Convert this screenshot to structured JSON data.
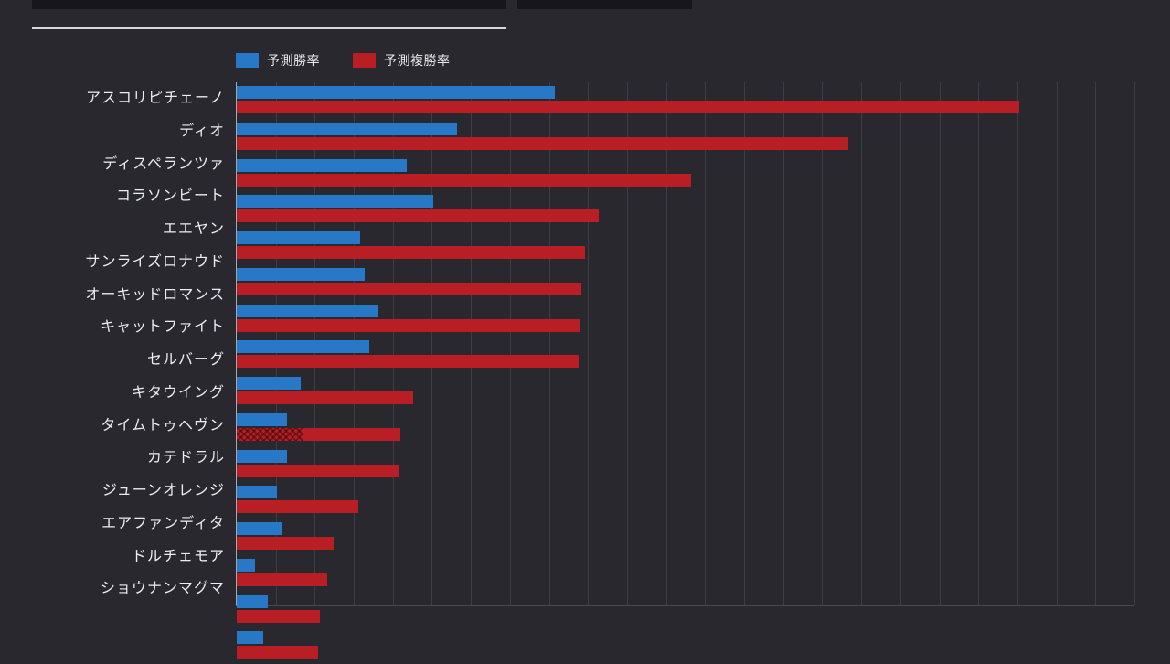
{
  "colors": {
    "background": "#28282e",
    "bar_blue": "#2878c8",
    "bar_red": "#b91e24",
    "gridline": "#3d3d45",
    "axis": "#a7a8ae",
    "text": "#ecedef",
    "top_fragment": "#17171b",
    "fragment_underline": "#d8d8dc"
  },
  "chart_data": {
    "type": "bar",
    "orientation": "horizontal",
    "unit": "%",
    "title": "",
    "grid": "on",
    "legend_position": "top-left",
    "xlim": [
      0,
      57.5
    ],
    "grid_step": 2.5,
    "categories": [
      "アスコリピチェーノ",
      "ディオ",
      "ディスペランツァ",
      "コラソンビート",
      "エエヤン",
      "サンライズロナウド",
      "オーキッドロマンス",
      "キャットファイト",
      "セルバーグ",
      "キタウイング",
      "タイムトゥヘヴン",
      "カテドラル",
      "ジューンオレンジ",
      "エアファンディタ",
      "ドルチェモア",
      "ショウナンマグマ"
    ],
    "series": [
      {
        "key": "win",
        "name": "予測勝率",
        "color": "#2878c8",
        "values": [
          20.4,
          14.1,
          10.9,
          12.6,
          7.9,
          8.2,
          9.0,
          8.5,
          4.1,
          3.2,
          3.2,
          2.6,
          2.9,
          1.2,
          2.0,
          1.7
        ]
      },
      {
        "key": "place",
        "name": "予測複勝率",
        "color": "#b91e24",
        "values": [
          50.1,
          39.2,
          29.1,
          23.2,
          22.3,
          22.1,
          22.0,
          21.9,
          11.3,
          10.5,
          10.4,
          7.8,
          6.2,
          5.8,
          5.3,
          5.2
        ]
      }
    ],
    "hatch": {
      "category": "キタウイング",
      "series": "予測複勝率",
      "width_value": 4.3
    }
  }
}
